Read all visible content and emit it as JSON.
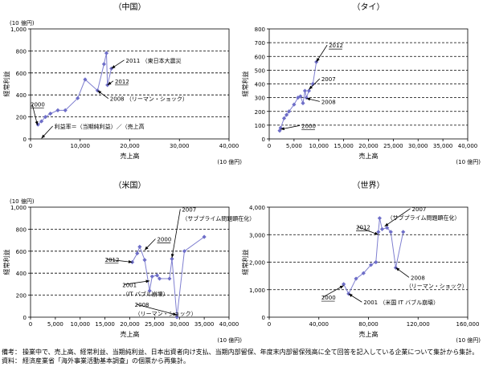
{
  "chart_data": [
    {
      "type": "scatter",
      "title": "（中国）",
      "xlabel": "売上高",
      "x_unit": "(10 億円)",
      "ylabel": "経常利益",
      "y_unit": "(10 億円)",
      "xlim": [
        0,
        40000
      ],
      "ylim": [
        0,
        1000
      ],
      "xticks": [
        "0",
        "10,000",
        "20,000",
        "30,000",
        "40,000"
      ],
      "yticks": [
        "0",
        "200",
        "400",
        "600",
        "800",
        "1,000"
      ],
      "dashed_lines_at": [
        200,
        400,
        600,
        800
      ],
      "connected": true,
      "points": [
        {
          "x": 1500,
          "y": 130
        },
        {
          "x": 2200,
          "y": 160
        },
        {
          "x": 3000,
          "y": 200
        },
        {
          "x": 4000,
          "y": 230
        },
        {
          "x": 5500,
          "y": 260
        },
        {
          "x": 7000,
          "y": 260
        },
        {
          "x": 9500,
          "y": 370
        },
        {
          "x": 11000,
          "y": 540
        },
        {
          "x": 13500,
          "y": 440
        },
        {
          "x": 14800,
          "y": 680
        },
        {
          "x": 15300,
          "y": 780
        },
        {
          "x": 15500,
          "y": 490
        },
        {
          "x": 16300,
          "y": 640
        }
      ],
      "annotations": [
        {
          "text": "2000",
          "x": 0,
          "y": 295,
          "tx": 1400,
          "ty": 125,
          "underline": true
        },
        {
          "text": "2011 （東日本大震災",
          "x": 19200,
          "y": 695,
          "tx": 16300,
          "ty": 640,
          "underline": false
        },
        {
          "text": "2012",
          "x": 17000,
          "y": 505,
          "tx": 15500,
          "ty": 490,
          "underline": true
        },
        {
          "text": "2008 （リーマン・ショック）",
          "x": 16000,
          "y": 345,
          "tx": 13500,
          "ty": 440,
          "underline": false
        },
        {
          "text": "利益率＝（当期純利益）／（売上高",
          "x": 4800,
          "y": 95,
          "tx": 2200,
          "ty": 5,
          "underline": false
        }
      ]
    },
    {
      "type": "scatter",
      "title": "（タイ）",
      "xlabel": "売上高",
      "x_unit": "(10 億円)",
      "ylabel": "経常利益",
      "y_unit": "",
      "xlim": [
        0,
        40000
      ],
      "ylim": [
        0,
        800
      ],
      "xticks": [
        "0",
        "5,000",
        "10,000",
        "15,000",
        "20,000",
        "25,000",
        "30,000",
        "35,000",
        "40,000"
      ],
      "yticks": [
        "0",
        "100",
        "200",
        "300",
        "400",
        "500",
        "600",
        "700",
        "800"
      ],
      "dashed_lines_at": [
        100,
        200,
        300,
        400,
        500,
        600,
        700
      ],
      "connected": true,
      "points": [
        {
          "x": 2100,
          "y": 60
        },
        {
          "x": 2300,
          "y": 80
        },
        {
          "x": 3000,
          "y": 150
        },
        {
          "x": 3500,
          "y": 175
        },
        {
          "x": 4000,
          "y": 200
        },
        {
          "x": 5000,
          "y": 250
        },
        {
          "x": 5800,
          "y": 300
        },
        {
          "x": 6300,
          "y": 310
        },
        {
          "x": 6800,
          "y": 260
        },
        {
          "x": 7200,
          "y": 350
        },
        {
          "x": 7500,
          "y": 300
        },
        {
          "x": 8000,
          "y": 350
        },
        {
          "x": 8800,
          "y": 400
        },
        {
          "x": 9500,
          "y": 560
        }
      ],
      "annotations": [
        {
          "text": "2000",
          "x": 6500,
          "y": 80,
          "tx": 2300,
          "ty": 70,
          "underline": true
        },
        {
          "text": "2012",
          "x": 12000,
          "y": 665,
          "tx": 9500,
          "ty": 560,
          "underline": true
        },
        {
          "text": "2007",
          "x": 10500,
          "y": 420,
          "tx": 8000,
          "ty": 360,
          "underline": false
        },
        {
          "text": "2008",
          "x": 10500,
          "y": 255,
          "tx": 7500,
          "ty": 295,
          "underline": false
        }
      ]
    },
    {
      "type": "scatter",
      "title": "（米国）",
      "xlabel": "売上高",
      "x_unit": "(10 億円)",
      "ylabel": "経常利益",
      "y_unit": "(10 億円)",
      "xlim": [
        0,
        40000
      ],
      "ylim": [
        0,
        1000
      ],
      "xticks": [
        "0",
        "5,000",
        "10,000",
        "15,000",
        "20,000",
        "25,000",
        "30,000",
        "35,000",
        "40,000"
      ],
      "yticks": [
        "0",
        "200",
        "400",
        "600",
        "800",
        "1,000"
      ],
      "dashed_lines_at": [
        200,
        400,
        600,
        800
      ],
      "connected": true,
      "points": [
        {
          "x": 20500,
          "y": 500
        },
        {
          "x": 21500,
          "y": 580
        },
        {
          "x": 22000,
          "y": 640
        },
        {
          "x": 23000,
          "y": 520
        },
        {
          "x": 24000,
          "y": 240
        },
        {
          "x": 24500,
          "y": 370
        },
        {
          "x": 25500,
          "y": 380
        },
        {
          "x": 26000,
          "y": 350
        },
        {
          "x": 28000,
          "y": 350
        },
        {
          "x": 28500,
          "y": 530
        },
        {
          "x": 29500,
          "y": 0
        },
        {
          "x": 31000,
          "y": 600
        },
        {
          "x": 35000,
          "y": 730
        }
      ],
      "annotations": [
        {
          "text": "2007",
          "x": 30500,
          "y": 960,
          "tx": 28500,
          "ty": 540,
          "underline": false
        },
        {
          "text": "（サブプライム問題顕在化）",
          "x": 30500,
          "y": 880,
          "tx": null,
          "ty": null,
          "underline": false
        },
        {
          "text": "2000",
          "x": 25500,
          "y": 690,
          "tx": 23000,
          "ty": 610,
          "underline": true
        },
        {
          "text": "2012",
          "x": 15000,
          "y": 505,
          "tx": 20500,
          "ty": 500,
          "underline": true
        },
        {
          "text": "2001",
          "x": 18500,
          "y": 275,
          "tx": 24000,
          "ty": 330,
          "underline": false
        },
        {
          "text": "（IT バブル崩壊）",
          "x": 18500,
          "y": 195,
          "tx": null,
          "ty": null,
          "underline": false
        },
        {
          "text": "2008",
          "x": 21000,
          "y": 95,
          "tx": 29500,
          "ty": 20,
          "underline": false
        },
        {
          "text": "（リーマン・ショック）",
          "x": 21000,
          "y": 15,
          "tx": null,
          "ty": null,
          "underline": false
        }
      ]
    },
    {
      "type": "scatter",
      "title": "（世界）",
      "xlabel": "売上高",
      "x_unit": "(10 億円)",
      "ylabel": "経常利益",
      "y_unit": "",
      "xlim": [
        0,
        160000
      ],
      "ylim": [
        0,
        4000
      ],
      "xticks": [
        "0",
        "40,000",
        "80,000",
        "120,000",
        "160,000"
      ],
      "yticks": [
        "0",
        "1,000",
        "2,000",
        "3,000",
        "4,000"
      ],
      "dashed_lines_at": [
        1000,
        2000,
        3000
      ],
      "connected": true,
      "points": [
        {
          "x": 60000,
          "y": 1200
        },
        {
          "x": 64000,
          "y": 850
        },
        {
          "x": 70000,
          "y": 1400
        },
        {
          "x": 76000,
          "y": 1600
        },
        {
          "x": 82000,
          "y": 1900
        },
        {
          "x": 86000,
          "y": 2000
        },
        {
          "x": 88000,
          "y": 3100
        },
        {
          "x": 89000,
          "y": 3600
        },
        {
          "x": 91000,
          "y": 3200
        },
        {
          "x": 95000,
          "y": 3250
        },
        {
          "x": 98000,
          "y": 3100
        },
        {
          "x": 102000,
          "y": 1800
        },
        {
          "x": 108000,
          "y": 3100
        }
      ],
      "annotations": [
        {
          "text": "2007",
          "x": 115000,
          "y": 3860,
          "tx": 93000,
          "ty": 3300,
          "underline": false
        },
        {
          "text": "（サブプライム問題顕在化）",
          "x": 95000,
          "y": 3550,
          "tx": null,
          "ty": null,
          "underline": false
        },
        {
          "text": "2012",
          "x": 70000,
          "y": 3200,
          "tx": 88000,
          "ty": 3000,
          "underline": true
        },
        {
          "text": "2000",
          "x": 42000,
          "y": 640,
          "tx": 60000,
          "ty": 1150,
          "underline": true
        },
        {
          "text": "2008",
          "x": 114000,
          "y": 1360,
          "tx": 102000,
          "ty": 1800,
          "underline": false
        },
        {
          "text": "（リーマン・ショック）",
          "x": 110000,
          "y": 1060,
          "tx": null,
          "ty": null,
          "underline": false
        },
        {
          "text": "2001 （米国 IT バブル崩壊）",
          "x": 76000,
          "y": 460,
          "tx": 64000,
          "ty": 850,
          "underline": false
        }
      ]
    }
  ],
  "notes": {
    "remark_head": "備考：",
    "remark_body": "操業中で、売上高、経常利益、当期純利益、日本出資者向け支払、当期内部留保、年度末内部留保残高に全て回答を記入している企業について集計から集計。",
    "source_head": "資料：",
    "source_body": "経済産業省「海外事業活動基本調査」の個票から再集計。"
  },
  "colors": {
    "series": "#6e6ec8",
    "line": "#7f7fd0",
    "axis": "#000000",
    "grid": "#000000"
  }
}
